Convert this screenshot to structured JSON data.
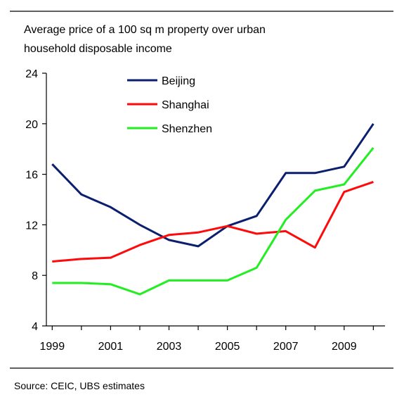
{
  "chart_data": {
    "type": "line",
    "subtitle": "Average price of a 100 sq m property over urban household disposable income",
    "subtitle_lines": [
      "Average price of a 100 sq m property over urban",
      "household disposable income"
    ],
    "x": [
      1999,
      2000,
      2001,
      2002,
      2003,
      2004,
      2005,
      2006,
      2007,
      2008,
      2009,
      2010
    ],
    "x_tick_labels": [
      "1999",
      "2001",
      "2003",
      "2005",
      "2007",
      "2009"
    ],
    "y_tick_labels": [
      "4",
      "8",
      "12",
      "16",
      "20",
      "24"
    ],
    "xlim": [
      1998.8,
      2010.4
    ],
    "ylim": [
      4,
      24
    ],
    "grid": false,
    "legend_position": "top-left",
    "series": [
      {
        "name": "Beijing",
        "color": "#0b1f6f",
        "values": [
          16.8,
          14.4,
          13.4,
          12.0,
          10.8,
          10.3,
          11.9,
          12.7,
          16.1,
          16.1,
          16.6,
          20.0
        ]
      },
      {
        "name": "Shanghai",
        "color": "#ff0a0a",
        "values": [
          9.1,
          9.3,
          9.4,
          10.4,
          11.2,
          11.4,
          11.9,
          11.3,
          11.5,
          10.2,
          14.6,
          15.4
        ]
      },
      {
        "name": "Shenzhen",
        "color": "#22ee22",
        "values": [
          7.4,
          7.4,
          7.3,
          6.5,
          7.6,
          7.6,
          7.6,
          8.6,
          12.4,
          14.7,
          15.2,
          18.1
        ]
      }
    ],
    "source": "Source: CEIC, UBS estimates"
  }
}
